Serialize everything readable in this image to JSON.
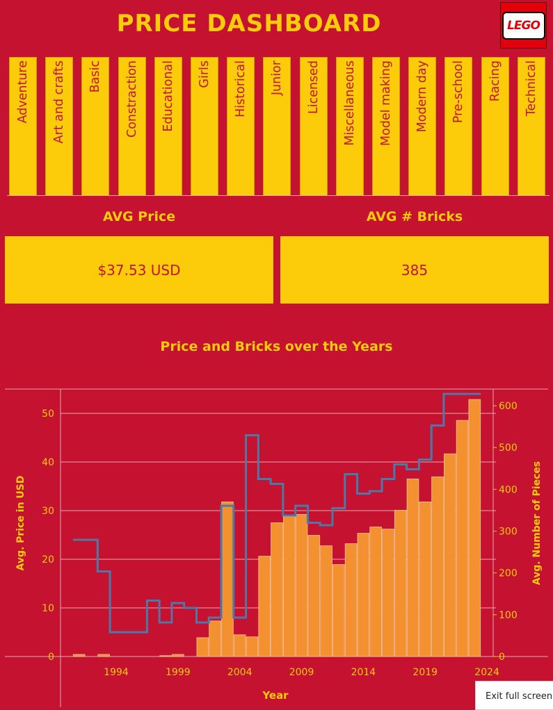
{
  "header": {
    "title": "PRICE DASHBOARD",
    "logo_text": "LEGO"
  },
  "categories": [
    "Adventure",
    "Art and crafts",
    "Basic",
    "Constraction",
    "Educational",
    "Girls",
    "Historical",
    "Junior",
    "Licensed",
    "Miscellaneous",
    "Model making",
    "Modern day",
    "Pre-school",
    "Racing",
    "Technical"
  ],
  "kpis": {
    "avg_price_label": "AVG Price",
    "avg_price_value": "$37.53 USD",
    "avg_bricks_label": "AVG # Bricks",
    "avg_bricks_value": "385"
  },
  "colors": {
    "background": "#c41230",
    "accent": "#fccc0a",
    "bar": "#f39131",
    "line": "#4b79a8"
  },
  "chart_data": {
    "type": "bar",
    "title": "Price and Bricks over the Years",
    "xlabel": "Year",
    "ylabel_left": "Avg. Price in USD",
    "ylabel_right": "Avg. Number of Pieces",
    "x_ticks": [
      1994,
      1999,
      2004,
      2009,
      2014,
      2019,
      2024
    ],
    "y_left_ticks": [
      0,
      10,
      20,
      30,
      40,
      50
    ],
    "y_right_ticks": [
      0,
      100,
      200,
      300,
      400,
      500,
      600
    ],
    "y_left_range": [
      0,
      55
    ],
    "y_right_range": [
      0,
      640
    ],
    "x_range": [
      1989.5,
      2024.5
    ],
    "grid": true,
    "series": [
      {
        "name": "Avg. Number of Pieces",
        "type": "bar",
        "x": [
          1991,
          1993,
          1998,
          1999,
          2001,
          2002,
          2003,
          2004,
          2005,
          2006,
          2007,
          2008,
          2009,
          2010,
          2011,
          2012,
          2013,
          2014,
          2015,
          2016,
          2017,
          2018,
          2019,
          2020,
          2021,
          2022,
          2023
        ],
        "values": [
          5,
          5,
          2,
          5,
          45,
          85,
          370,
          52,
          47,
          240,
          320,
          335,
          340,
          290,
          265,
          220,
          270,
          295,
          310,
          305,
          350,
          425,
          370,
          430,
          485,
          565,
          615
        ]
      },
      {
        "name": "Avg. Price in USD",
        "type": "step",
        "x": [
          1991,
          1992,
          1993,
          1994,
          1995,
          1996,
          1997,
          1998,
          1999,
          2000,
          2001,
          2002,
          2003,
          2004,
          2005,
          2006,
          2007,
          2008,
          2009,
          2010,
          2011,
          2012,
          2013,
          2014,
          2015,
          2016,
          2017,
          2018,
          2019,
          2020,
          2021,
          2022,
          2023
        ],
        "values": [
          24,
          24,
          17.5,
          5,
          5,
          5,
          11.5,
          7,
          11,
          10,
          7,
          8,
          31,
          8,
          45.5,
          36.5,
          35.5,
          29,
          31,
          27.5,
          27,
          30.5,
          37.5,
          33.5,
          34,
          36.5,
          39.5,
          38.5,
          40.5,
          47.5,
          54,
          54,
          54
        ]
      }
    ]
  },
  "exit_button": {
    "label": "Exit full screen"
  }
}
